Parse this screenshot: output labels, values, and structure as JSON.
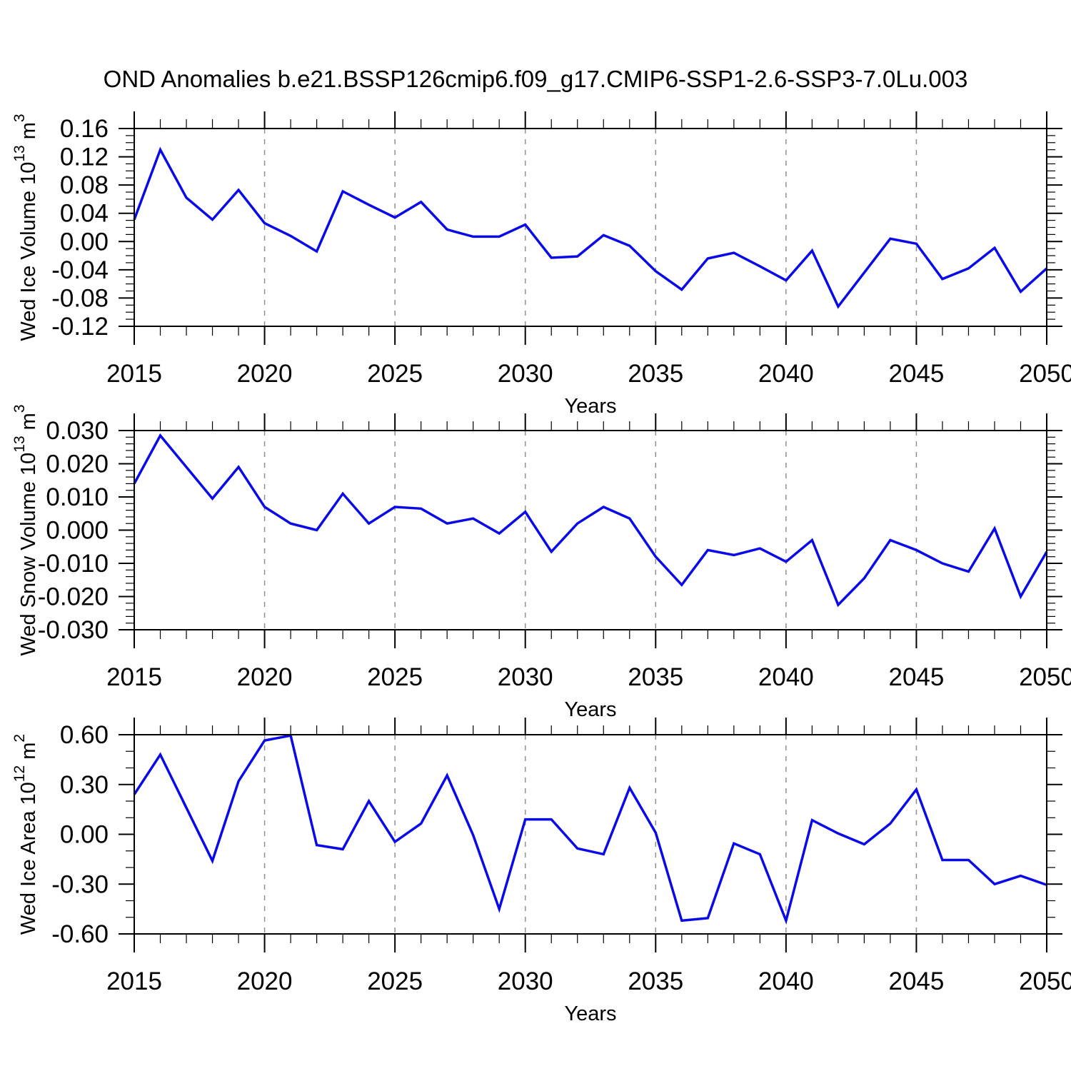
{
  "title": "OND Anomalies b.e21.BSSP126cmip6.f09_g17.CMIP6-SSP1-2.6-SSP3-7.0Lu.003",
  "line_color": "#0a0ae8",
  "grid_color": "#909090",
  "frame_color": "#000000",
  "chart_data": [
    {
      "type": "line",
      "title": "",
      "xlabel": "Years",
      "ylabel": "Wed Ice Volume 10^13 m^3",
      "ylabel_segments": [
        [
          "Wed Ice Volume 10",
          false
        ],
        [
          "13",
          true
        ],
        [
          " m",
          false
        ],
        [
          "3",
          true
        ]
      ],
      "ylim": [
        -0.12,
        0.16
      ],
      "ytick_major": 0.04,
      "ytick_minor": 0.01,
      "yticks": [
        {
          "v": 0.16,
          "label": "0.16"
        },
        {
          "v": 0.12,
          "label": "0.12"
        },
        {
          "v": 0.08,
          "label": "0.08"
        },
        {
          "v": 0.04,
          "label": "0.04"
        },
        {
          "v": 0.0,
          "label": "0.00"
        },
        {
          "v": -0.04,
          "label": "-0.04"
        },
        {
          "v": -0.08,
          "label": "-0.08"
        },
        {
          "v": -0.12,
          "label": "-0.12"
        }
      ],
      "xlim": [
        2015,
        2050
      ],
      "x_minor_step": 1,
      "xticks": [
        {
          "v": 2015,
          "label": "2015"
        },
        {
          "v": 2020,
          "label": "2020"
        },
        {
          "v": 2025,
          "label": "2025"
        },
        {
          "v": 2030,
          "label": "2030"
        },
        {
          "v": 2035,
          "label": "2035"
        },
        {
          "v": 2040,
          "label": "2040"
        },
        {
          "v": 2045,
          "label": "2045"
        },
        {
          "v": 2050,
          "label": "2050"
        }
      ],
      "grid_years": [
        2020,
        2025,
        2030,
        2035,
        2040,
        2045
      ],
      "x": [
        2015,
        2016,
        2017,
        2018,
        2019,
        2020,
        2021,
        2022,
        2023,
        2024,
        2025,
        2026,
        2027,
        2028,
        2029,
        2030,
        2031,
        2032,
        2033,
        2034,
        2035,
        2036,
        2037,
        2038,
        2039,
        2040,
        2041,
        2042,
        2043,
        2044,
        2045,
        2046,
        2047,
        2048,
        2049,
        2050
      ],
      "values": [
        0.031,
        0.13,
        0.062,
        0.031,
        0.073,
        0.026,
        0.008,
        -0.014,
        0.071,
        0.052,
        0.034,
        0.056,
        0.017,
        0.007,
        0.007,
        0.024,
        -0.023,
        -0.021,
        0.009,
        -0.006,
        -0.042,
        -0.068,
        -0.024,
        -0.016,
        -0.035,
        -0.055,
        -0.013,
        -0.092,
        -0.044,
        0.004,
        -0.003,
        -0.053,
        -0.038,
        -0.009,
        -0.071,
        -0.038
      ]
    },
    {
      "type": "line",
      "title": "",
      "xlabel": "Years",
      "ylabel": "Wed Snow Volume 10^13 m^3",
      "ylabel_segments": [
        [
          "Wed Snow Volume 10",
          false
        ],
        [
          "13",
          true
        ],
        [
          " m",
          false
        ],
        [
          "3",
          true
        ]
      ],
      "ylim": [
        -0.03,
        0.03
      ],
      "ytick_major": 0.01,
      "ytick_minor": 0.002,
      "yticks": [
        {
          "v": 0.03,
          "label": "0.030"
        },
        {
          "v": 0.02,
          "label": "0.020"
        },
        {
          "v": 0.01,
          "label": "0.010"
        },
        {
          "v": 0.0,
          "label": "0.000"
        },
        {
          "v": -0.01,
          "label": "-0.010"
        },
        {
          "v": -0.02,
          "label": "-0.020"
        },
        {
          "v": -0.03,
          "label": "-0.030"
        }
      ],
      "xlim": [
        2015,
        2050
      ],
      "x_minor_step": 1,
      "xticks": [
        {
          "v": 2015,
          "label": "2015"
        },
        {
          "v": 2020,
          "label": "2020"
        },
        {
          "v": 2025,
          "label": "2025"
        },
        {
          "v": 2030,
          "label": "2030"
        },
        {
          "v": 2035,
          "label": "2035"
        },
        {
          "v": 2040,
          "label": "2040"
        },
        {
          "v": 2045,
          "label": "2045"
        },
        {
          "v": 2050,
          "label": "2050"
        }
      ],
      "grid_years": [
        2020,
        2025,
        2030,
        2035,
        2040,
        2045
      ],
      "x": [
        2015,
        2016,
        2017,
        2018,
        2019,
        2020,
        2021,
        2022,
        2023,
        2024,
        2025,
        2026,
        2027,
        2028,
        2029,
        2030,
        2031,
        2032,
        2033,
        2034,
        2035,
        2036,
        2037,
        2038,
        2039,
        2040,
        2041,
        2042,
        2043,
        2044,
        2045,
        2046,
        2047,
        2048,
        2049,
        2050
      ],
      "values": [
        0.014,
        0.0285,
        0.019,
        0.0095,
        0.019,
        0.007,
        0.002,
        0.0,
        0.011,
        0.002,
        0.007,
        0.0065,
        0.002,
        0.0035,
        -0.001,
        0.0055,
        -0.0065,
        0.002,
        0.007,
        0.0035,
        -0.008,
        -0.0165,
        -0.006,
        -0.0075,
        -0.0055,
        -0.0095,
        -0.003,
        -0.0225,
        -0.0145,
        -0.003,
        -0.006,
        -0.01,
        -0.0125,
        0.0005,
        -0.02,
        -0.0065
      ]
    },
    {
      "type": "line",
      "title": "",
      "xlabel": "Years",
      "ylabel": "Wed Ice Area 10^12 m^2",
      "ylabel_segments": [
        [
          "Wed Ice Area 10",
          false
        ],
        [
          "12",
          true
        ],
        [
          " m",
          false
        ],
        [
          "2",
          true
        ]
      ],
      "ylim": [
        -0.6,
        0.6
      ],
      "ytick_major": 0.3,
      "ytick_minor": 0.1,
      "yticks": [
        {
          "v": 0.6,
          "label": "0.60"
        },
        {
          "v": 0.3,
          "label": "0.30"
        },
        {
          "v": 0.0,
          "label": "0.00"
        },
        {
          "v": -0.3,
          "label": "-0.30"
        },
        {
          "v": -0.6,
          "label": "-0.60"
        }
      ],
      "xlim": [
        2015,
        2050
      ],
      "x_minor_step": 1,
      "xticks": [
        {
          "v": 2015,
          "label": "2015"
        },
        {
          "v": 2020,
          "label": "2020"
        },
        {
          "v": 2025,
          "label": "2025"
        },
        {
          "v": 2030,
          "label": "2030"
        },
        {
          "v": 2035,
          "label": "2035"
        },
        {
          "v": 2040,
          "label": "2040"
        },
        {
          "v": 2045,
          "label": "2045"
        },
        {
          "v": 2050,
          "label": "2050"
        }
      ],
      "grid_years": [
        2020,
        2025,
        2030,
        2035,
        2040,
        2045
      ],
      "x": [
        2015,
        2016,
        2017,
        2018,
        2019,
        2020,
        2021,
        2022,
        2023,
        2024,
        2025,
        2026,
        2027,
        2028,
        2029,
        2030,
        2031,
        2032,
        2033,
        2034,
        2035,
        2036,
        2037,
        2038,
        2039,
        2040,
        2041,
        2042,
        2043,
        2044,
        2045,
        2046,
        2047,
        2048,
        2049,
        2050
      ],
      "values": [
        0.24,
        0.48,
        0.16,
        -0.16,
        0.32,
        0.565,
        0.595,
        -0.065,
        -0.09,
        0.2,
        -0.045,
        0.065,
        0.355,
        -0.005,
        -0.45,
        0.09,
        0.09,
        -0.085,
        -0.12,
        0.28,
        0.01,
        -0.52,
        -0.505,
        -0.055,
        -0.12,
        -0.52,
        0.085,
        0.005,
        -0.06,
        0.065,
        0.27,
        -0.155,
        -0.155,
        -0.3,
        -0.25,
        -0.305
      ]
    }
  ]
}
